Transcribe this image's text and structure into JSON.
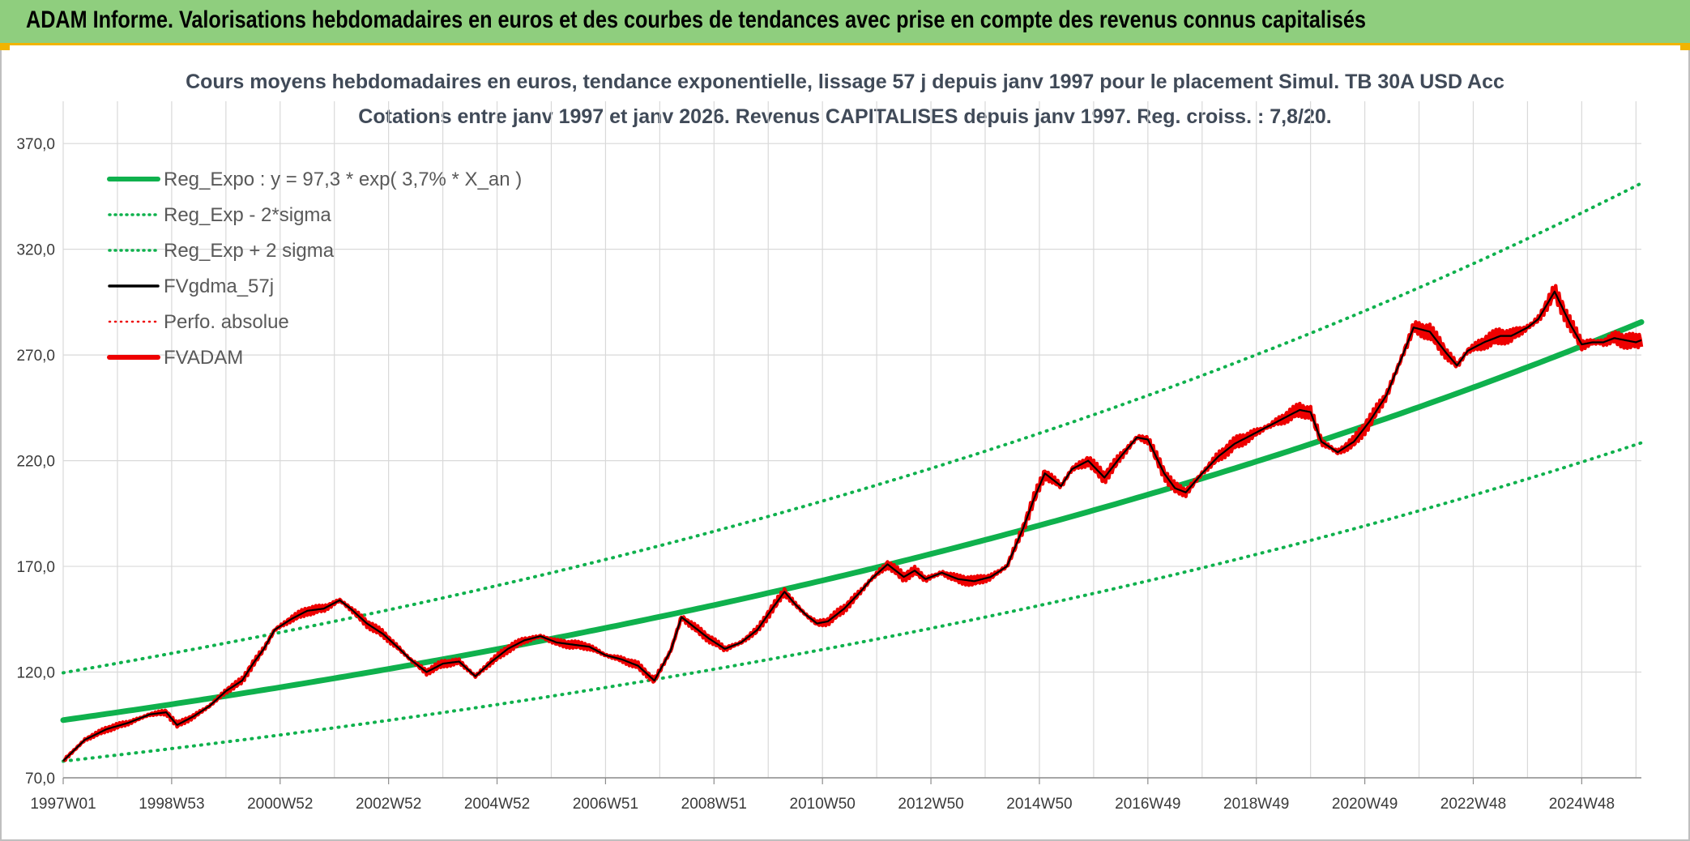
{
  "header": {
    "title": "ADAM Informe. Valorisations hebdomadaires en euros et des courbes de tendances avec prise en compte des revenus connus capitalisés"
  },
  "colors": {
    "banner": "#8fce7e",
    "accent": "#f2b400",
    "trend": "#0fb14d",
    "actual": "#ee0000",
    "smoothed": "#000000"
  },
  "chart_data": {
    "type": "line",
    "title_lines": [
      "Cours moyens hebdomadaires en euros, tendance exponentielle, lissage 57 j depuis janv 1997 pour le placement Simul. TB 30A USD Acc",
      "Cotations entre janv 1997 et janv 2026. Revenus CAPITALISES depuis janv 1997. Reg. croiss. : 7,8/20."
    ],
    "xlabel": "",
    "ylabel": "",
    "x_range": [
      1997.0,
      2026.1
    ],
    "ylim": [
      70,
      390
    ],
    "y_ticks": [
      "70,0",
      "120,0",
      "170,0",
      "220,0",
      "270,0",
      "320,0",
      "370,0"
    ],
    "y_tick_values": [
      70,
      120,
      170,
      220,
      270,
      320,
      370
    ],
    "x_ticks": [
      "1997W01",
      "1998W53",
      "2000W52",
      "2002W52",
      "2004W52",
      "2006W51",
      "2008W51",
      "2010W50",
      "2012W50",
      "2014W50",
      "2016W49",
      "2018W49",
      "2020W49",
      "2022W48",
      "2024W48"
    ],
    "x_tick_years": [
      1997.0,
      1999.0,
      2001.0,
      2003.0,
      2005.0,
      2007.0,
      2009.0,
      2011.0,
      2013.0,
      2015.0,
      2017.0,
      2019.0,
      2021.0,
      2023.0,
      2025.0
    ],
    "grid": true,
    "legend_position": "top-left",
    "regression": {
      "a": 97.3,
      "rate": 0.037,
      "sigma_factor_lower": 0.8,
      "sigma_factor_upper": 1.23
    },
    "series": [
      {
        "name": "Reg_Expo : y = 97,3 * exp( 3,7% *  X_an )",
        "style": "solid-thick",
        "color": "#0fb14d"
      },
      {
        "name": "Reg_Exp - 2*sigma",
        "style": "dotted",
        "color": "#0fb14d"
      },
      {
        "name": "Reg_Exp + 2 sigma",
        "style": "dotted",
        "color": "#0fb14d"
      },
      {
        "name": "FVgdma_57j",
        "style": "solid",
        "color": "#000000"
      },
      {
        "name": "Perfo. absolue",
        "style": "dotted",
        "color": "#ee0000"
      },
      {
        "name": "FVADAM",
        "style": "solid-thick",
        "color": "#ee0000",
        "x": [
          1997.0,
          1997.4,
          1997.8,
          1998.2,
          1998.6,
          1998.9,
          1999.1,
          1999.4,
          1999.7,
          2000.0,
          2000.3,
          2000.5,
          2000.7,
          2000.9,
          2001.2,
          2001.5,
          2001.8,
          2002.1,
          2002.3,
          2002.6,
          2002.9,
          2003.2,
          2003.4,
          2003.7,
          2004.0,
          2004.3,
          2004.6,
          2004.9,
          2005.2,
          2005.5,
          2005.8,
          2006.1,
          2006.4,
          2006.7,
          2007.0,
          2007.3,
          2007.6,
          2007.9,
          2008.2,
          2008.4,
          2008.6,
          2008.9,
          2009.2,
          2009.5,
          2009.8,
          2010.1,
          2010.3,
          2010.5,
          2010.7,
          2010.9,
          2011.1,
          2011.4,
          2011.7,
          2011.9,
          2012.2,
          2012.5,
          2012.7,
          2012.9,
          2013.2,
          2013.5,
          2013.8,
          2014.1,
          2014.4,
          2014.7,
          2014.9,
          2015.1,
          2015.4,
          2015.6,
          2015.9,
          2016.2,
          2016.5,
          2016.8,
          2017.0,
          2017.3,
          2017.5,
          2017.7,
          2018.0,
          2018.3,
          2018.6,
          2018.9,
          2019.2,
          2019.5,
          2019.8,
          2020.0,
          2020.2,
          2020.5,
          2020.8,
          2021.1,
          2021.4,
          2021.7,
          2021.9,
          2022.2,
          2022.5,
          2022.7,
          2022.9,
          2023.2,
          2023.5,
          2023.7,
          2024.0,
          2024.2,
          2024.5,
          2024.8,
          2025.0,
          2025.2,
          2025.4,
          2025.6,
          2025.8,
          2026.0,
          2026.1
        ],
        "values": [
          78,
          88,
          93,
          96,
          100,
          101,
          95,
          99,
          104,
          111,
          116,
          124,
          131,
          140,
          145,
          149,
          150,
          154,
          150,
          143,
          138,
          131,
          126,
          120,
          124,
          125,
          118,
          125,
          131,
          135,
          137,
          134,
          133,
          132,
          128,
          126,
          123,
          116,
          130,
          146,
          142,
          136,
          131,
          134,
          140,
          151,
          158,
          152,
          147,
          143,
          144,
          150,
          158,
          164,
          171,
          165,
          168,
          164,
          167,
          164,
          163,
          165,
          170,
          188,
          202,
          214,
          208,
          216,
          220,
          212,
          222,
          231,
          230,
          214,
          207,
          205,
          214,
          222,
          228,
          232,
          236,
          240,
          244,
          243,
          229,
          224,
          229,
          239,
          251,
          270,
          283,
          281,
          271,
          265,
          272,
          276,
          279,
          279,
          283,
          287,
          300,
          284,
          275,
          276,
          276,
          278,
          277,
          276,
          277
        ]
      }
    ]
  }
}
